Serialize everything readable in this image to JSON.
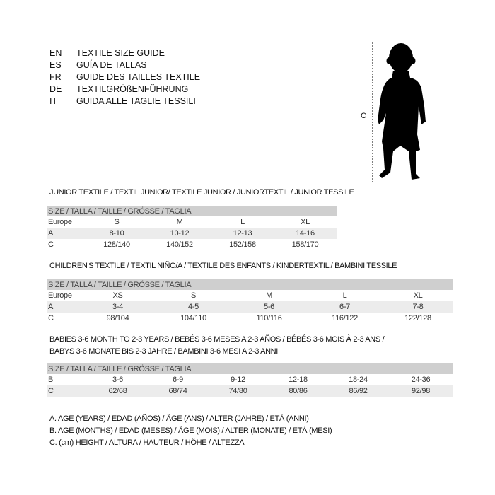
{
  "languages": [
    {
      "code": "EN",
      "text": "TEXTILE SIZE GUIDE"
    },
    {
      "code": "ES",
      "text": "GUÍA DE TALLAS"
    },
    {
      "code": "FR",
      "text": "GUIDE DES TAILLES TEXTILE"
    },
    {
      "code": "DE",
      "text": "TEXTILGRÖßENFÜHRUNG"
    },
    {
      "code": "IT",
      "text": "GUIDA ALLE TAGLIE TESSILI"
    }
  ],
  "figure": {
    "label": "C",
    "icon": "child-silhouette-icon"
  },
  "junior": {
    "title": "JUNIOR TEXTILE / TEXTIL JUNIOR/ TEXTILE JUNIOR / JUNIORTEXTIL / JUNIOR TESSILE",
    "header": "SIZE / TALLA / TAILLE / GRÖSSE / TAGLIA",
    "rows": [
      {
        "label": "Europe",
        "values": [
          "S",
          "M",
          "L",
          "XL"
        ]
      },
      {
        "label": "A",
        "values": [
          "8-10",
          "10-12",
          "12-13",
          "14-16"
        ]
      },
      {
        "label": "C",
        "values": [
          "128/140",
          "140/152",
          "152/158",
          "158/170"
        ]
      }
    ]
  },
  "children": {
    "title": "CHILDREN'S TEXTILE / TEXTIL NIÑO/A / TEXTILE DES ENFANTS / KINDERTEXTIL / BAMBINI TESSILE",
    "header": "SIZE / TALLA / TAILLE / GRÖSSE / TAGLIA",
    "rows": [
      {
        "label": "Europe",
        "values": [
          "XS",
          "S",
          "M",
          "L",
          "XL"
        ]
      },
      {
        "label": "A",
        "values": [
          "3-4",
          "4-5",
          "5-6",
          "6-7",
          "7-8"
        ]
      },
      {
        "label": "C",
        "values": [
          "98/104",
          "104/110",
          "110/116",
          "116/122",
          "122/128"
        ]
      }
    ]
  },
  "babies": {
    "title_line1": "BABIES 3-6 MONTH TO 2-3 YEARS / BEBÉS 3-6 MESES A 2-3 AÑOS / BÉBÉS 3-6 MOIS À 2-3 ANS /",
    "title_line2": "BABYS 3-6 MONATE BIS 2-3 JAHRE / BAMBINI 3-6 MESI A 2-3 ANNI",
    "header": "SIZE / TALLA / TAILLE / GRÖSSE / TAGLIA",
    "rows": [
      {
        "label": "B",
        "values": [
          "3-6",
          "6-9",
          "9-12",
          "12-18",
          "18-24",
          "24-36"
        ]
      },
      {
        "label": "C",
        "values": [
          "62/68",
          "68/74",
          "74/80",
          "80/86",
          "86/92",
          "92/98"
        ]
      }
    ]
  },
  "legend": [
    "A. AGE (YEARS) / EDAD (AÑOS) / ÂGE (ANS) / ALTER (JAHRE) / ETÀ (ANNI)",
    "B. AGE (MONTHS) / EDAD (MESES) / ÂGE (MOIS) / ALTER (MONATE) / ETÀ (MESI)",
    "C. (cm) HEIGHT / ALTURA / HAUTEUR / HÖHE / ALTEZZA"
  ]
}
